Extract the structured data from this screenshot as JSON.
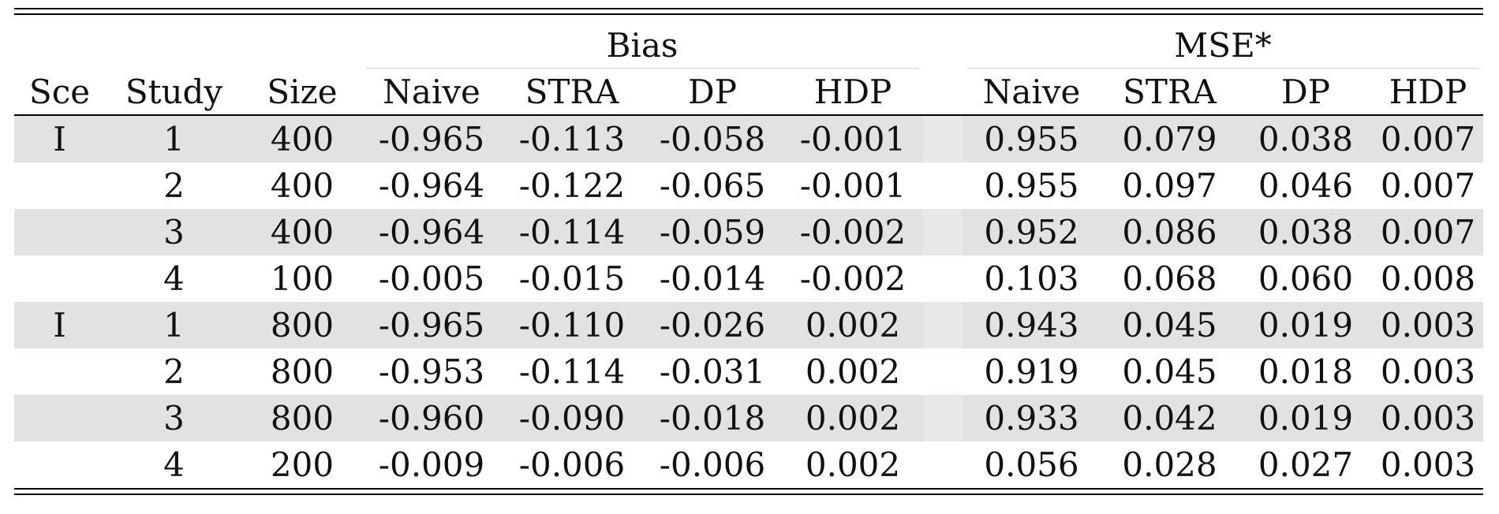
{
  "groups": {
    "bias": "Bias",
    "mse": "MSE*"
  },
  "headers": {
    "sce": "Sce",
    "study": "Study",
    "size": "Size",
    "bias_naive": "Naive",
    "bias_stra": "STRA",
    "bias_dp": "DP",
    "bias_hdp": "HDP",
    "mse_naive": "Naive",
    "mse_stra": "STRA",
    "mse_dp": "DP",
    "mse_hdp": "HDP"
  },
  "rows": [
    {
      "sce": "I",
      "study": "1",
      "size": "400",
      "bias_naive": "-0.965",
      "bias_stra": "-0.113",
      "bias_dp": "-0.058",
      "bias_hdp": "-0.001",
      "mse_naive": "0.955",
      "mse_stra": "0.079",
      "mse_dp": "0.038",
      "mse_hdp": "0.007"
    },
    {
      "sce": "",
      "study": "2",
      "size": "400",
      "bias_naive": "-0.964",
      "bias_stra": "-0.122",
      "bias_dp": "-0.065",
      "bias_hdp": "-0.001",
      "mse_naive": "0.955",
      "mse_stra": "0.097",
      "mse_dp": "0.046",
      "mse_hdp": "0.007"
    },
    {
      "sce": "",
      "study": "3",
      "size": "400",
      "bias_naive": "-0.964",
      "bias_stra": "-0.114",
      "bias_dp": "-0.059",
      "bias_hdp": "-0.002",
      "mse_naive": "0.952",
      "mse_stra": "0.086",
      "mse_dp": "0.038",
      "mse_hdp": "0.007"
    },
    {
      "sce": "",
      "study": "4",
      "size": "100",
      "bias_naive": "-0.005",
      "bias_stra": "-0.015",
      "bias_dp": "-0.014",
      "bias_hdp": "-0.002",
      "mse_naive": "0.103",
      "mse_stra": "0.068",
      "mse_dp": "0.060",
      "mse_hdp": "0.008"
    },
    {
      "sce": "I",
      "study": "1",
      "size": "800",
      "bias_naive": "-0.965",
      "bias_stra": "-0.110",
      "bias_dp": "-0.026",
      "bias_hdp": "0.002",
      "mse_naive": "0.943",
      "mse_stra": "0.045",
      "mse_dp": "0.019",
      "mse_hdp": "0.003"
    },
    {
      "sce": "",
      "study": "2",
      "size": "800",
      "bias_naive": "-0.953",
      "bias_stra": "-0.114",
      "bias_dp": "-0.031",
      "bias_hdp": "0.002",
      "mse_naive": "0.919",
      "mse_stra": "0.045",
      "mse_dp": "0.018",
      "mse_hdp": "0.003"
    },
    {
      "sce": "",
      "study": "3",
      "size": "800",
      "bias_naive": "-0.960",
      "bias_stra": "-0.090",
      "bias_dp": "-0.018",
      "bias_hdp": "0.002",
      "mse_naive": "0.933",
      "mse_stra": "0.042",
      "mse_dp": "0.019",
      "mse_hdp": "0.003"
    },
    {
      "sce": "",
      "study": "4",
      "size": "200",
      "bias_naive": "-0.009",
      "bias_stra": "-0.006",
      "bias_dp": "-0.006",
      "bias_hdp": "0.002",
      "mse_naive": "0.056",
      "mse_stra": "0.028",
      "mse_dp": "0.027",
      "mse_hdp": "0.003"
    }
  ]
}
